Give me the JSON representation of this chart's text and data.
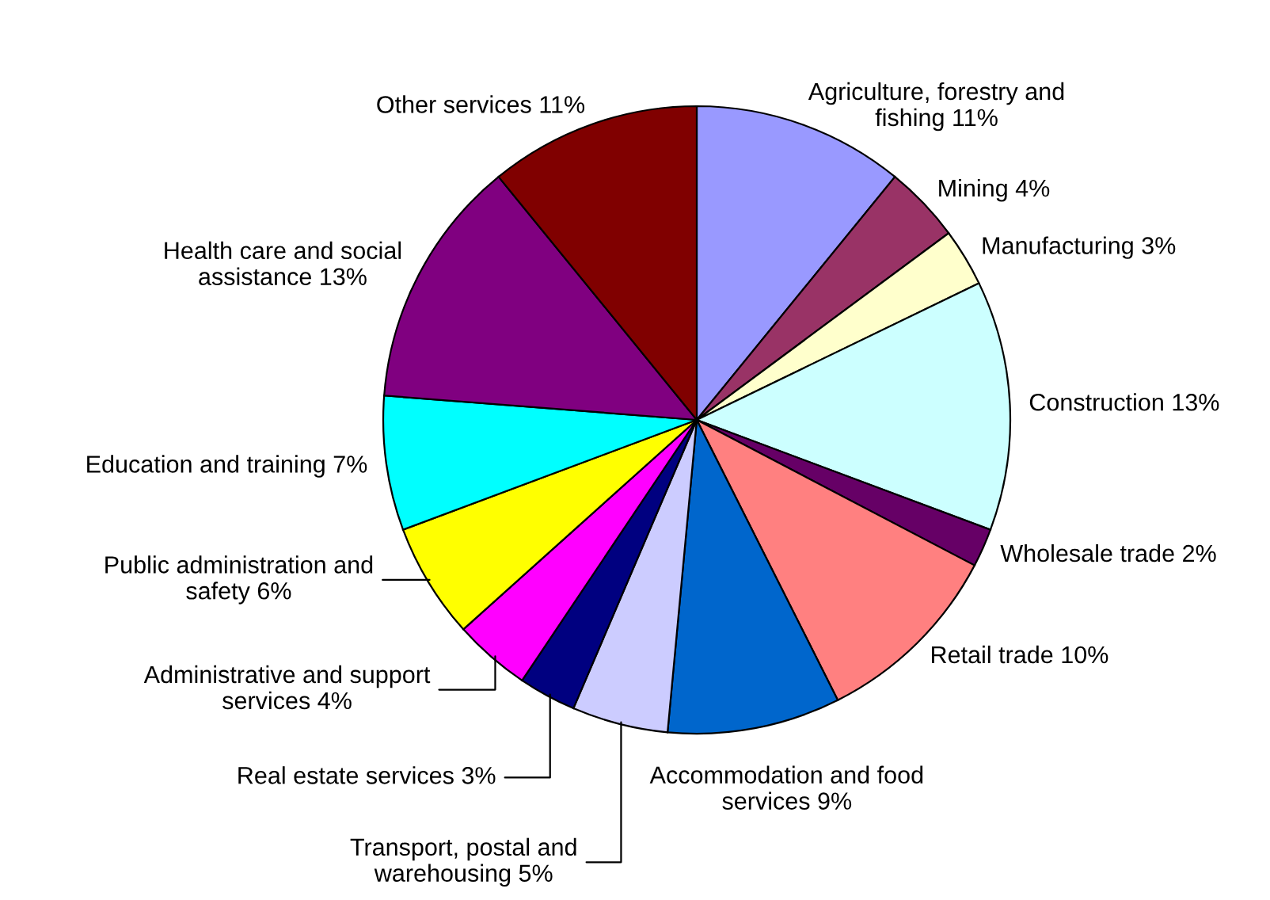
{
  "chart_data": {
    "type": "pie",
    "categories": [
      "Agriculture, forestry and\nfishing",
      "Mining",
      "Manufacturing",
      "Construction",
      "Wholesale trade",
      "Retail trade",
      "Accommodation and food\nservices",
      "Transport, postal and\nwarehousing",
      "Real estate services",
      "Administrative and support\nservices",
      "Public administration and\nsafety",
      "Education and training",
      "Health care and social\nassistance",
      "Other services"
    ],
    "values": [
      11,
      4,
      3,
      13,
      2,
      10,
      9,
      5,
      3,
      4,
      6,
      7,
      13,
      11
    ],
    "value_labels": [
      "11%",
      "4%",
      "3%",
      "13%",
      "2%",
      "10%",
      "9%",
      "5%",
      "3%",
      "4%",
      "6%",
      "7%",
      "13%",
      "11%"
    ],
    "colors": [
      "#9999ff",
      "#993366",
      "#ffffcc",
      "#ccffff",
      "#660066",
      "#ff8080",
      "#0066cc",
      "#ccccff",
      "#000080",
      "#ff00ff",
      "#ffff00",
      "#00ffff",
      "#800080",
      "#800000"
    ],
    "legend": false
  }
}
